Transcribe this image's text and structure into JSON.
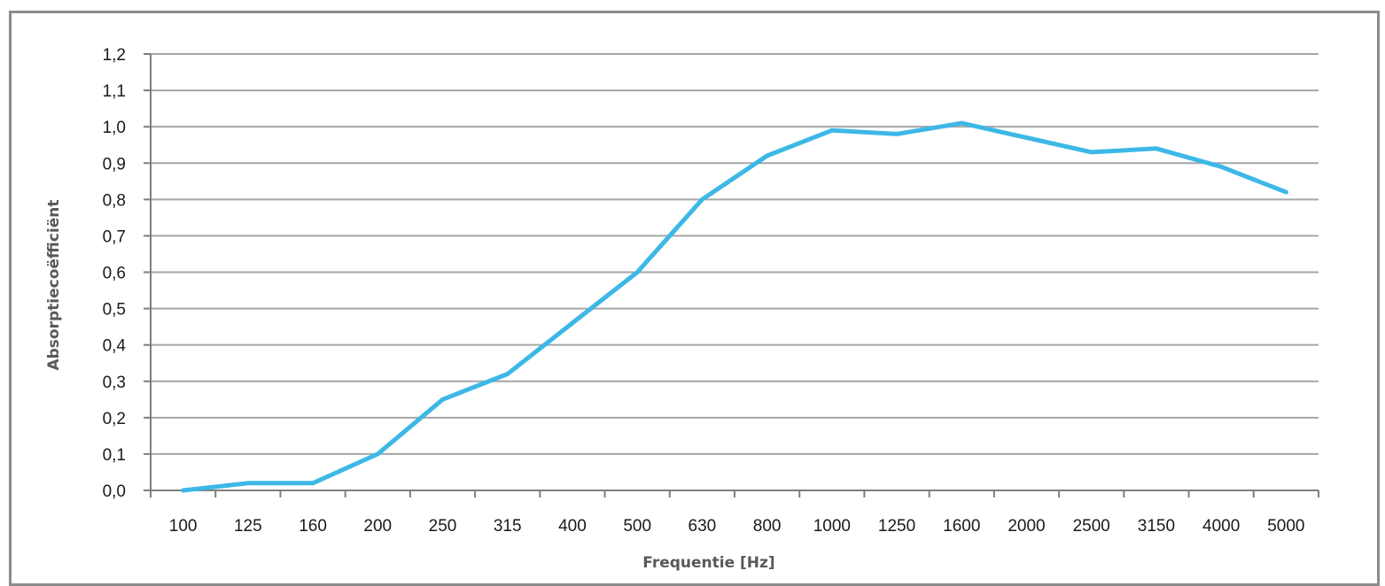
{
  "chart_data": {
    "type": "line",
    "title": "",
    "xlabel": "Frequentie [Hz]",
    "ylabel": "Absorptiecoëfficiënt",
    "categories": [
      "100",
      "125",
      "160",
      "200",
      "250",
      "315",
      "400",
      "500",
      "630",
      "800",
      "1000",
      "1250",
      "1600",
      "2000",
      "2500",
      "3150",
      "4000",
      "5000"
    ],
    "series": [
      {
        "values": [
          0.0,
          0.02,
          0.02,
          0.1,
          0.25,
          0.32,
          0.46,
          0.6,
          0.8,
          0.92,
          0.99,
          0.98,
          1.01,
          0.97,
          0.93,
          0.94,
          0.89,
          0.82
        ]
      }
    ],
    "ylim": [
      0.0,
      1.2
    ],
    "yticks": [
      "0,0",
      "0,1",
      "0,2",
      "0,3",
      "0,4",
      "0,5",
      "0,6",
      "0,7",
      "0,8",
      "0,9",
      "1,0",
      "1,1",
      "1,2"
    ],
    "grid": true,
    "line_color": "#3db8e6",
    "grid_color": "#a6a6a6",
    "axis_color": "#7f7f7f"
  }
}
